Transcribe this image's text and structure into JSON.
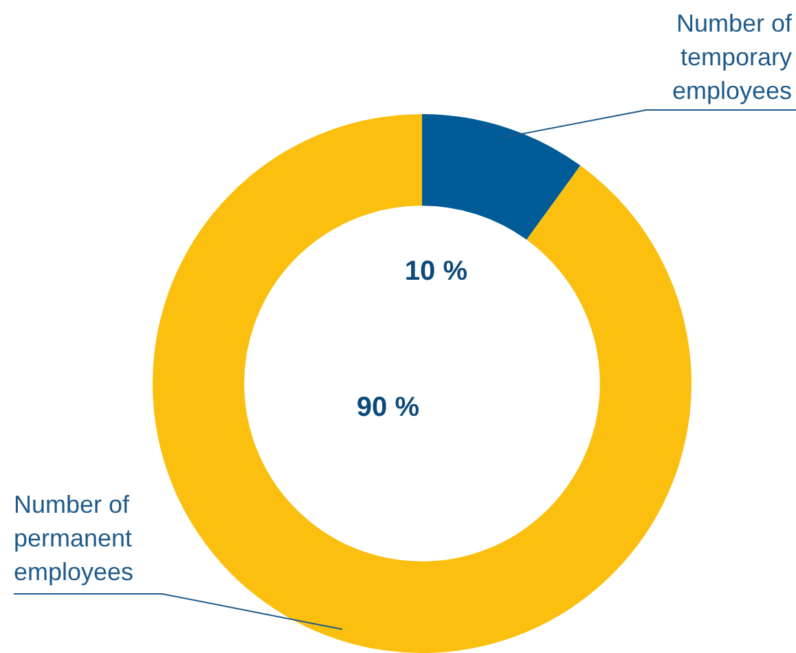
{
  "chart_data": {
    "type": "donut",
    "categories": [
      "Number of temporary employees",
      "Number of permanent employees"
    ],
    "values": [
      10,
      90
    ],
    "colors": [
      "#005b96",
      "#fbbf10"
    ],
    "value_labels": [
      "10 %",
      "90 %"
    ],
    "legend": false
  }
}
